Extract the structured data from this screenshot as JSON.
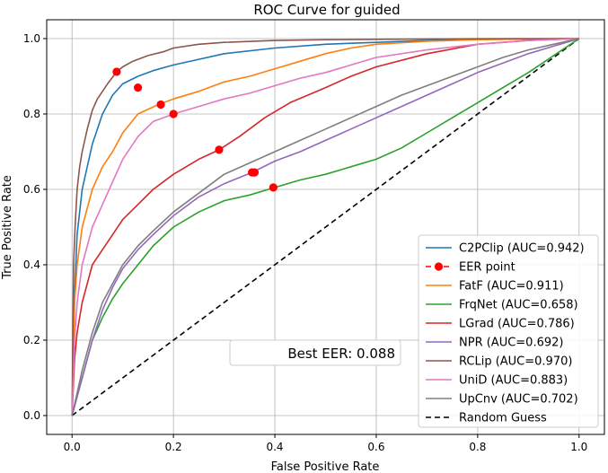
{
  "chart_data": {
    "type": "line",
    "title": "ROC Curve for guided",
    "xlabel": "False Positive Rate",
    "ylabel": "True Positive Rate",
    "xlim": [
      -0.05,
      1.05
    ],
    "ylim": [
      -0.05,
      1.05
    ],
    "xticks": [
      "0.0",
      "0.2",
      "0.4",
      "0.6",
      "0.8",
      "1.0"
    ],
    "yticks": [
      "0.0",
      "0.2",
      "0.4",
      "0.6",
      "0.8",
      "1.0"
    ],
    "grid": true,
    "legend_position": "lower-right",
    "series": [
      {
        "name": "C2PClip",
        "label": "C2PClip (AUC=0.942)",
        "color": "#1f77b4",
        "x": [
          0,
          0.005,
          0.01,
          0.02,
          0.04,
          0.06,
          0.08,
          0.1,
          0.13,
          0.16,
          0.2,
          0.25,
          0.3,
          0.4,
          0.5,
          0.6,
          0.7,
          0.8,
          0.9,
          1.0
        ],
        "y": [
          0,
          0.32,
          0.48,
          0.6,
          0.72,
          0.8,
          0.85,
          0.88,
          0.9,
          0.915,
          0.93,
          0.945,
          0.96,
          0.975,
          0.985,
          0.99,
          0.995,
          0.998,
          0.999,
          1.0
        ]
      },
      {
        "name": "FatF",
        "label": "FatF (AUC=0.911)",
        "color": "#ff7f0e",
        "x": [
          0,
          0.005,
          0.01,
          0.02,
          0.04,
          0.06,
          0.08,
          0.1,
          0.13,
          0.17,
          0.2,
          0.25,
          0.3,
          0.35,
          0.4,
          0.45,
          0.5,
          0.55,
          0.6,
          0.7,
          0.8,
          0.9,
          1.0
        ],
        "y": [
          0,
          0.3,
          0.4,
          0.5,
          0.6,
          0.66,
          0.7,
          0.75,
          0.8,
          0.825,
          0.84,
          0.86,
          0.885,
          0.9,
          0.92,
          0.94,
          0.96,
          0.975,
          0.985,
          0.993,
          0.997,
          0.999,
          1.0
        ]
      },
      {
        "name": "FrqNet",
        "label": "FrqNet (AUC=0.658)",
        "color": "#2ca02c",
        "x": [
          0,
          0.02,
          0.04,
          0.06,
          0.08,
          0.1,
          0.13,
          0.16,
          0.2,
          0.25,
          0.3,
          0.35,
          0.4,
          0.45,
          0.5,
          0.55,
          0.6,
          0.65,
          0.7,
          0.75,
          0.8,
          0.85,
          0.9,
          0.95,
          1.0
        ],
        "y": [
          0,
          0.1,
          0.2,
          0.26,
          0.31,
          0.35,
          0.4,
          0.45,
          0.5,
          0.54,
          0.57,
          0.585,
          0.605,
          0.625,
          0.64,
          0.66,
          0.68,
          0.71,
          0.75,
          0.79,
          0.83,
          0.87,
          0.91,
          0.955,
          1.0
        ]
      },
      {
        "name": "LGrad",
        "label": "LGrad (AUC=0.786)",
        "color": "#d62728",
        "x": [
          0,
          0.005,
          0.01,
          0.02,
          0.04,
          0.06,
          0.08,
          0.1,
          0.13,
          0.16,
          0.2,
          0.25,
          0.29,
          0.33,
          0.38,
          0.43,
          0.5,
          0.55,
          0.6,
          0.7,
          0.8,
          0.9,
          1.0
        ],
        "y": [
          0,
          0.15,
          0.22,
          0.3,
          0.4,
          0.44,
          0.48,
          0.52,
          0.56,
          0.6,
          0.64,
          0.68,
          0.705,
          0.74,
          0.79,
          0.83,
          0.87,
          0.9,
          0.925,
          0.96,
          0.985,
          0.995,
          1.0
        ]
      },
      {
        "name": "NPR",
        "label": "NPR (AUC=0.692)",
        "color": "#9467bd",
        "x": [
          0,
          0.02,
          0.04,
          0.06,
          0.08,
          0.1,
          0.13,
          0.16,
          0.2,
          0.25,
          0.3,
          0.355,
          0.4,
          0.45,
          0.5,
          0.55,
          0.6,
          0.65,
          0.7,
          0.75,
          0.8,
          0.85,
          0.9,
          0.95,
          1.0
        ],
        "y": [
          0,
          0.1,
          0.2,
          0.28,
          0.34,
          0.39,
          0.44,
          0.48,
          0.53,
          0.58,
          0.615,
          0.645,
          0.675,
          0.7,
          0.73,
          0.76,
          0.79,
          0.82,
          0.85,
          0.88,
          0.91,
          0.935,
          0.96,
          0.98,
          1.0
        ]
      },
      {
        "name": "RCLip",
        "label": "RCLip (AUC=0.970)",
        "color": "#8c564b",
        "x": [
          0,
          0.003,
          0.006,
          0.01,
          0.015,
          0.02,
          0.03,
          0.04,
          0.05,
          0.06,
          0.07,
          0.088,
          0.1,
          0.12,
          0.15,
          0.18,
          0.2,
          0.25,
          0.3,
          0.4,
          0.5,
          0.6,
          0.7,
          0.8,
          0.9,
          1.0
        ],
        "y": [
          0,
          0.4,
          0.5,
          0.6,
          0.66,
          0.7,
          0.76,
          0.81,
          0.84,
          0.86,
          0.88,
          0.912,
          0.925,
          0.94,
          0.955,
          0.965,
          0.975,
          0.985,
          0.99,
          0.995,
          0.997,
          0.998,
          0.999,
          0.9995,
          0.9998,
          1.0
        ]
      },
      {
        "name": "UniD",
        "label": "UniD (AUC=0.883)",
        "color": "#e377c2",
        "x": [
          0,
          0.005,
          0.01,
          0.02,
          0.04,
          0.06,
          0.08,
          0.1,
          0.13,
          0.16,
          0.2,
          0.25,
          0.3,
          0.35,
          0.4,
          0.45,
          0.5,
          0.55,
          0.6,
          0.7,
          0.8,
          0.9,
          1.0
        ],
        "y": [
          0,
          0.2,
          0.3,
          0.4,
          0.5,
          0.56,
          0.62,
          0.68,
          0.74,
          0.78,
          0.8,
          0.82,
          0.84,
          0.855,
          0.875,
          0.895,
          0.91,
          0.93,
          0.95,
          0.97,
          0.985,
          0.995,
          1.0
        ]
      },
      {
        "name": "UpCnv",
        "label": "UpCnv (AUC=0.702)",
        "color": "#7f7f7f",
        "x": [
          0,
          0.02,
          0.04,
          0.06,
          0.08,
          0.1,
          0.13,
          0.16,
          0.2,
          0.25,
          0.3,
          0.35,
          0.4,
          0.45,
          0.5,
          0.55,
          0.6,
          0.65,
          0.7,
          0.75,
          0.8,
          0.85,
          0.9,
          0.95,
          1.0
        ],
        "y": [
          0,
          0.12,
          0.22,
          0.3,
          0.35,
          0.4,
          0.45,
          0.49,
          0.54,
          0.59,
          0.64,
          0.67,
          0.7,
          0.73,
          0.76,
          0.79,
          0.82,
          0.85,
          0.875,
          0.9,
          0.925,
          0.95,
          0.97,
          0.985,
          1.0
        ]
      }
    ],
    "eer_points": {
      "name": "EER point",
      "label": "EER point",
      "color": "#ff0000",
      "x": [
        0.088,
        0.13,
        0.175,
        0.2,
        0.29,
        0.355,
        0.36,
        0.397
      ],
      "y": [
        0.912,
        0.87,
        0.825,
        0.8,
        0.705,
        0.645,
        0.645,
        0.605
      ]
    },
    "random_guess": {
      "label": "Random Guess",
      "color": "#000000",
      "x": [
        0,
        1
      ],
      "y": [
        0,
        1
      ]
    },
    "legend_order": [
      "C2PClip",
      "EER point",
      "FatF",
      "FrqNet",
      "LGrad",
      "NPR",
      "RCLip",
      "UniD",
      "UpCnv",
      "Random Guess"
    ],
    "annotation": "Best EER: 0.088"
  }
}
